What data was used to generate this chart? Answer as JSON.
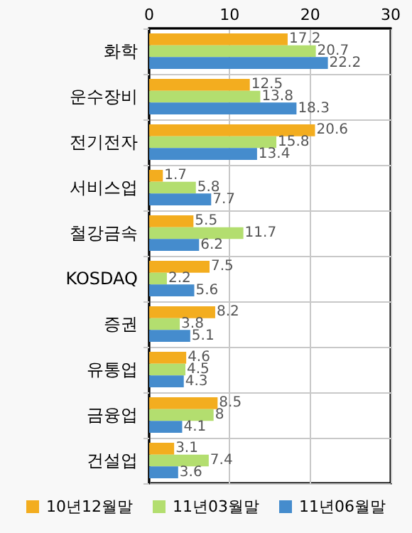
{
  "chart_data": {
    "type": "bar",
    "orientation": "horizontal",
    "categories": [
      "화학",
      "운수장비",
      "전기전자",
      "서비스업",
      "철강금속",
      "KOSDAQ",
      "증권",
      "유통업",
      "금융업",
      "건설업"
    ],
    "series": [
      {
        "name": "10년12월말",
        "color": "#f3ad1f",
        "values": [
          17.2,
          12.5,
          20.6,
          1.7,
          5.5,
          7.5,
          8.2,
          4.6,
          8.5,
          3.1
        ]
      },
      {
        "name": "11년03월말",
        "color": "#b3de6f",
        "values": [
          20.7,
          13.8,
          15.8,
          5.8,
          11.7,
          2.2,
          3.8,
          4.5,
          8,
          7.4
        ]
      },
      {
        "name": "11년06월말",
        "color": "#458ccd",
        "values": [
          22.2,
          18.3,
          13.4,
          7.7,
          6.2,
          5.6,
          5.1,
          4.3,
          4.1,
          3.6
        ]
      }
    ],
    "xlim": [
      0,
      30
    ],
    "xticks": [
      0,
      10,
      20,
      30
    ],
    "grid": true,
    "legend": "bottom",
    "data_labels": true
  }
}
